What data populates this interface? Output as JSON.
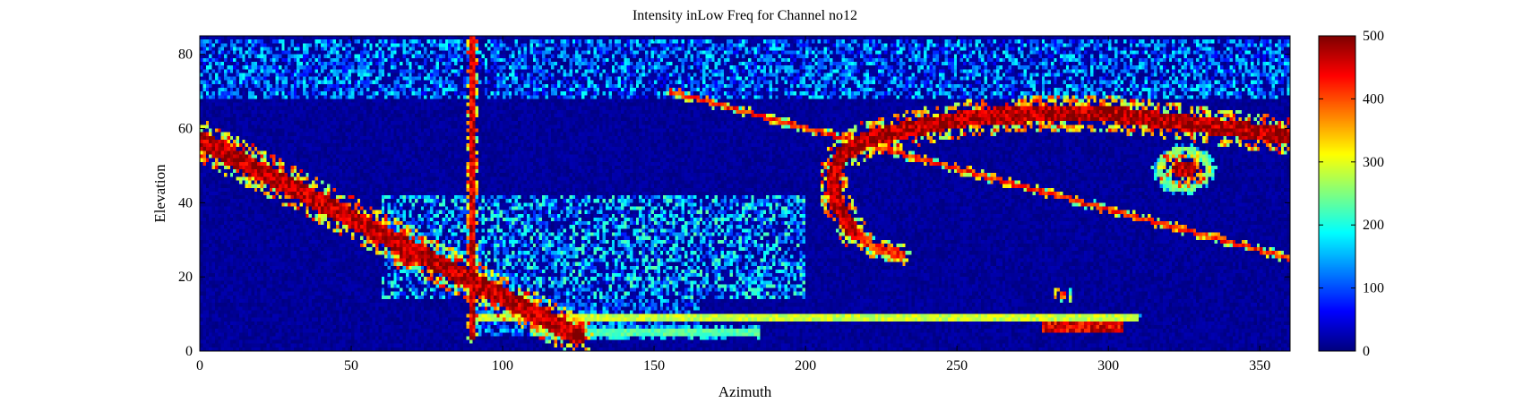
{
  "chart_data": {
    "type": "heatmap",
    "title": "Intensity inLow Freq for Channel no12",
    "xlabel": "Azimuth",
    "ylabel": "Elevation",
    "xlim": [
      0,
      360
    ],
    "ylim": [
      0,
      85
    ],
    "xticks": [
      0,
      50,
      100,
      150,
      200,
      250,
      300,
      350
    ],
    "yticks": [
      0,
      20,
      40,
      60,
      80
    ],
    "colorbar": {
      "range": [
        0,
        500
      ],
      "ticks": [
        0,
        100,
        200,
        300,
        400,
        500
      ],
      "colormap": "jet"
    },
    "background_value": 0,
    "features": [
      {
        "name": "diagonal streak",
        "kind": "line",
        "from": [
          0,
          57
        ],
        "to": [
          125,
          4
        ],
        "width": 2.5,
        "value": 500
      },
      {
        "name": "vertical line",
        "kind": "line",
        "from": [
          90,
          84
        ],
        "to": [
          90,
          4
        ],
        "width": 0.9,
        "value": 480
      },
      {
        "name": "arc",
        "kind": "polyline",
        "width": 2.2,
        "value": 500,
        "points": [
          [
            215,
            33
          ],
          [
            210,
            40
          ],
          [
            209,
            47
          ],
          [
            212,
            53
          ],
          [
            220,
            57
          ],
          [
            235,
            60
          ],
          [
            255,
            63
          ],
          [
            280,
            64
          ],
          [
            300,
            64
          ],
          [
            320,
            62
          ],
          [
            340,
            60
          ],
          [
            360,
            58
          ]
        ]
      },
      {
        "name": "arc hook",
        "kind": "polyline",
        "width": 1.2,
        "value": 440,
        "points": [
          [
            215,
            33
          ],
          [
            222,
            28
          ],
          [
            232,
            26
          ]
        ]
      },
      {
        "name": "dashed line",
        "kind": "line",
        "from": [
          155,
          70
        ],
        "to": [
          360,
          25
        ],
        "width": 0.6,
        "value": 440
      },
      {
        "name": "blob right",
        "kind": "blob",
        "center": [
          325,
          49
        ],
        "radius": 4,
        "value": 500
      },
      {
        "name": "ring right",
        "kind": "ring",
        "center": [
          325,
          49
        ],
        "radius": 8,
        "value": 260
      },
      {
        "name": "blob left",
        "kind": "blob",
        "center": [
          68,
          25
        ],
        "radius": 2.5,
        "value": 500
      },
      {
        "name": "blob small",
        "kind": "blob",
        "center": [
          285,
          15
        ],
        "radius": 1.6,
        "value": 420
      },
      {
        "name": "bottom patch",
        "kind": "band",
        "x": [
          278,
          305
        ],
        "y": [
          5,
          8
        ],
        "value": 470
      },
      {
        "name": "horizontal line",
        "kind": "line",
        "from": [
          92,
          9
        ],
        "to": [
          310,
          9
        ],
        "width": 0.6,
        "value": 300
      },
      {
        "name": "bottom line",
        "kind": "line",
        "from": [
          110,
          5
        ],
        "to": [
          185,
          5
        ],
        "width": 0.7,
        "value": 240
      }
    ],
    "diffuse_regions": [
      {
        "x": [
          0,
          360
        ],
        "y": [
          68,
          84
        ],
        "value": 150
      },
      {
        "x": [
          60,
          200
        ],
        "y": [
          14,
          42
        ],
        "value": 180
      },
      {
        "x": [
          90,
          165
        ],
        "y": [
          4,
          14
        ],
        "value": 140
      }
    ]
  }
}
